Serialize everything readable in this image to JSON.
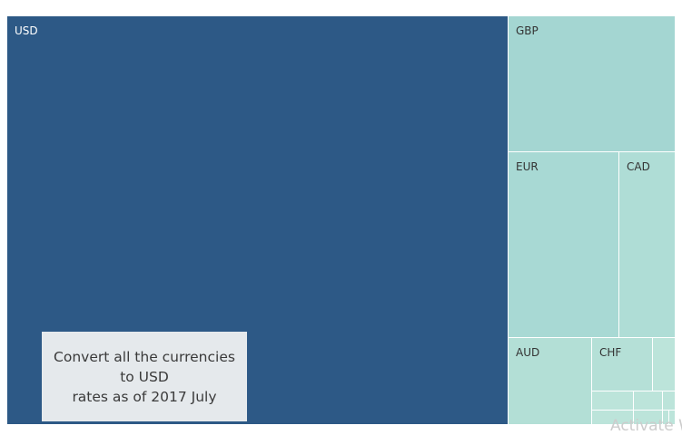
{
  "chart_data": {
    "type": "treemap",
    "categories": [
      "USD",
      "GBP",
      "EUR",
      "CAD",
      "AUD",
      "CHF"
    ],
    "values": [
      62.0,
      8.3,
      8.0,
      5.6,
      3.0,
      1.8
    ],
    "unlabeled_minor_tiles": 8,
    "title": "",
    "colors": {
      "USD": "#2d5986",
      "GBP": "#a4d6d2",
      "EUR": "#a8d9d4",
      "CAD": "#afddd6",
      "AUD": "#b3dfd6",
      "CHF": "#b5e0d7",
      "minor": "#bce4da"
    }
  },
  "annotation": {
    "line1": "Convert all the currencies",
    "line2": "to USD",
    "line3": "rates as of 2017 July"
  },
  "watermark": "Activate W"
}
